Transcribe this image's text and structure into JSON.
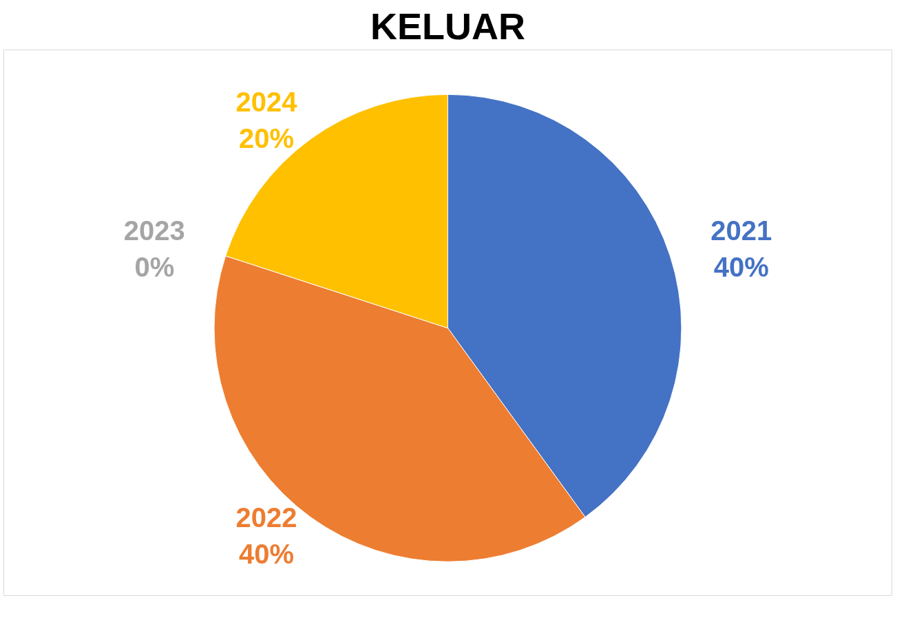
{
  "chart_data": {
    "type": "pie",
    "title": "KELUAR",
    "categories": [
      "2021",
      "2022",
      "2023",
      "2024"
    ],
    "values": [
      40,
      40,
      0,
      20
    ],
    "value_labels": [
      "40%",
      "40%",
      "0%",
      "20%"
    ],
    "colors": [
      "#4472c4",
      "#ed7d31",
      "#a5a5a5",
      "#ffc000"
    ]
  }
}
